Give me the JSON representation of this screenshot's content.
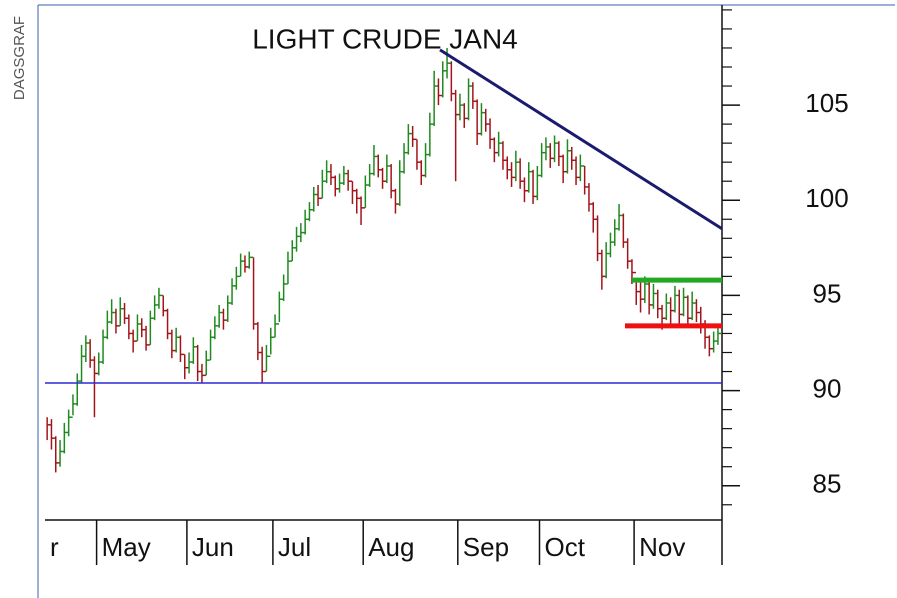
{
  "chart_data": {
    "type": "ohlc",
    "title": "LIGHT CRUDE JAN4",
    "source": "DAGSGRAF",
    "categories": [
      "r",
      "May",
      "Jun",
      "Jul",
      "Aug",
      "Sep",
      "Oct",
      "Nov"
    ],
    "up_color": "#1f8a1f",
    "down_color": "#a3141a",
    "ylim": [
      83.2,
      110.1
    ],
    "yticks": [
      85,
      90,
      95,
      100,
      105
    ],
    "minor_yticks": [
      84,
      86,
      87,
      88,
      89,
      91,
      92,
      93,
      94,
      96,
      97,
      98,
      99,
      101,
      102,
      103,
      104,
      106,
      107,
      108,
      109,
      110
    ],
    "lines": [
      {
        "color": "#1a1a6e",
        "from": 107.9,
        "to": 98.5
      },
      {
        "color": "#2a2ad6",
        "from": 90.4,
        "to": 90.4
      },
      {
        "color": "#22a822",
        "from": 95.8,
        "to": 95.8
      },
      {
        "color": "#ee1111",
        "from": 93.4,
        "to": 93.4
      }
    ],
    "bars": [
      [
        [
          88.6,
          87.4,
          88.2
        ],
        [
          88.5,
          86.9,
          87.5
        ],
        [
          87.6,
          85.7,
          86.2
        ],
        [
          87.4,
          86.0,
          86.8
        ],
        [
          88.3,
          86.7,
          87.8
        ],
        [
          89.0,
          87.6,
          88.6
        ],
        [
          89.8,
          88.7,
          89.3
        ],
        [
          90.9,
          89.2,
          90.5
        ],
        [
          92.4,
          90.4,
          91.8
        ],
        [
          92.9,
          91.5,
          92.5
        ],
        [
          92.7,
          91.2,
          91.6
        ],
        [
          91.8,
          88.6,
          90.9
        ]
      ],
      [
        [
          92.0,
          90.8,
          91.5
        ],
        [
          93.2,
          91.4,
          92.8
        ],
        [
          94.2,
          92.7,
          93.6
        ],
        [
          94.8,
          93.5,
          94.1
        ],
        [
          94.3,
          93.0,
          93.4
        ],
        [
          94.9,
          93.4,
          94.3
        ],
        [
          94.6,
          93.5,
          93.8
        ],
        [
          94.0,
          92.7,
          93.0
        ],
        [
          93.2,
          92.0,
          92.6
        ],
        [
          94.0,
          92.6,
          93.5
        ],
        [
          93.8,
          92.8,
          93.2
        ],
        [
          93.4,
          92.1,
          92.4
        ],
        [
          94.2,
          92.4,
          93.8
        ],
        [
          95.0,
          93.7,
          94.5
        ],
        [
          95.4,
          94.3,
          95.0
        ],
        [
          95.0,
          93.9,
          94.2
        ],
        [
          94.3,
          92.7,
          93.0
        ],
        [
          93.2,
          91.7,
          92.1
        ],
        [
          93.3,
          92.0,
          92.8
        ],
        [
          92.9,
          91.5,
          91.9
        ],
        [
          91.9,
          90.6,
          91.2
        ]
      ],
      [
        [
          92.0,
          90.9,
          91.5
        ],
        [
          92.8,
          91.4,
          92.3
        ],
        [
          92.4,
          90.5,
          91.0
        ],
        [
          91.4,
          90.4,
          90.8
        ],
        [
          92.1,
          90.8,
          91.6
        ],
        [
          93.2,
          91.6,
          92.8
        ],
        [
          93.9,
          92.7,
          93.4
        ],
        [
          94.5,
          93.3,
          94.1
        ],
        [
          94.3,
          93.2,
          93.7
        ],
        [
          95.0,
          93.6,
          94.6
        ],
        [
          95.9,
          94.5,
          95.5
        ],
        [
          96.5,
          95.3,
          96.0
        ],
        [
          97.2,
          96.0,
          96.8
        ],
        [
          97.1,
          96.2,
          96.5
        ],
        [
          97.3,
          96.4,
          97.0
        ],
        [
          97.0,
          93.2,
          93.5
        ],
        [
          93.6,
          91.6,
          92.0
        ],
        [
          92.3,
          90.4,
          91.0
        ],
        [
          92.4,
          91.0,
          91.8
        ],
        [
          93.3,
          91.9,
          92.8
        ]
      ],
      [
        [
          94.0,
          92.8,
          93.5
        ],
        [
          95.2,
          93.6,
          94.8
        ],
        [
          96.1,
          94.7,
          95.6
        ],
        [
          97.3,
          95.6,
          96.8
        ],
        [
          97.9,
          96.8,
          97.5
        ],
        [
          98.6,
          97.3,
          98.1
        ],
        [
          98.8,
          97.8,
          98.3
        ],
        [
          99.5,
          98.2,
          99.0
        ],
        [
          99.9,
          98.9,
          99.5
        ],
        [
          100.7,
          99.4,
          100.3
        ],
        [
          100.8,
          99.7,
          100.1
        ],
        [
          101.6,
          100.1,
          101.0
        ],
        [
          102.1,
          100.9,
          101.5
        ],
        [
          101.9,
          100.8,
          101.2
        ],
        [
          101.3,
          100.2,
          100.6
        ],
        [
          101.4,
          100.4,
          100.9
        ],
        [
          101.8,
          100.8,
          101.4
        ],
        [
          101.6,
          100.5,
          101.0
        ],
        [
          101.0,
          99.8,
          100.5
        ],
        [
          100.6,
          99.3,
          100.1
        ],
        [
          100.2,
          98.7,
          99.6
        ]
      ],
      [
        [
          101.3,
          99.6,
          100.8
        ],
        [
          101.9,
          100.7,
          101.4
        ],
        [
          102.9,
          101.3,
          102.3
        ],
        [
          102.4,
          101.2,
          101.6
        ],
        [
          101.7,
          100.6,
          101.0
        ],
        [
          102.4,
          100.9,
          101.8
        ],
        [
          101.9,
          100.1,
          100.5
        ],
        [
          100.6,
          99.3,
          99.8
        ],
        [
          102.1,
          99.7,
          101.5
        ],
        [
          103.0,
          101.4,
          102.5
        ],
        [
          104.0,
          102.4,
          103.5
        ],
        [
          103.9,
          102.8,
          103.2
        ],
        [
          103.2,
          101.6,
          102.0
        ],
        [
          102.1,
          100.8,
          101.3
        ],
        [
          103.0,
          101.2,
          102.4
        ],
        [
          104.6,
          102.3,
          104.0
        ],
        [
          106.8,
          103.9,
          106.0
        ],
        [
          106.4,
          105.0,
          105.5
        ],
        [
          107.3,
          105.4,
          106.8
        ],
        [
          108.0,
          106.4,
          107.2
        ],
        [
          107.3,
          105.2,
          105.6
        ],
        [
          105.8,
          101.0,
          104.5
        ]
      ],
      [
        [
          105.6,
          104.2,
          105.0
        ],
        [
          105.1,
          103.8,
          104.3
        ],
        [
          106.4,
          104.2,
          106.0
        ],
        [
          106.2,
          104.8,
          105.2
        ],
        [
          105.3,
          102.9,
          103.5
        ],
        [
          105.1,
          103.4,
          104.6
        ],
        [
          104.8,
          103.6,
          104.0
        ],
        [
          104.3,
          102.7,
          103.2
        ],
        [
          103.3,
          102.0,
          102.5
        ],
        [
          103.6,
          102.3,
          103.0
        ],
        [
          103.1,
          101.6,
          102.1
        ],
        [
          102.3,
          101.1,
          101.6
        ],
        [
          102.0,
          100.7,
          101.2
        ],
        [
          102.6,
          101.0,
          102.0
        ],
        [
          102.2,
          100.6,
          101.0
        ],
        [
          101.2,
          99.9,
          100.5
        ],
        [
          102.0,
          100.4,
          101.5
        ],
        [
          101.6,
          99.8,
          100.2
        ],
        [
          101.8,
          100.0,
          101.3
        ]
      ],
      [
        [
          103.0,
          101.2,
          102.5
        ],
        [
          103.3,
          102.1,
          102.8
        ],
        [
          103.0,
          101.7,
          102.2
        ],
        [
          103.4,
          102.0,
          103.0
        ],
        [
          103.1,
          101.8,
          102.3
        ],
        [
          102.4,
          100.9,
          101.5
        ],
        [
          103.2,
          101.4,
          102.6
        ],
        [
          102.8,
          101.6,
          102.1
        ],
        [
          102.3,
          100.8,
          101.2
        ],
        [
          102.4,
          101.0,
          101.8
        ],
        [
          101.8,
          100.3,
          100.7
        ],
        [
          100.9,
          99.4,
          99.8
        ],
        [
          99.9,
          98.3,
          99.0
        ],
        [
          99.2,
          96.8,
          97.2
        ],
        [
          97.4,
          95.3,
          96.0
        ],
        [
          97.8,
          95.9,
          97.2
        ],
        [
          98.3,
          97.0,
          97.8
        ],
        [
          99.0,
          97.6,
          98.5
        ],
        [
          99.8,
          98.4,
          99.2
        ],
        [
          99.3,
          97.5,
          97.8
        ],
        [
          98.0,
          96.4,
          96.8
        ],
        [
          96.9,
          95.6,
          96.2
        ]
      ],
      [
        [
          95.9,
          94.5,
          95.2
        ],
        [
          95.7,
          94.1,
          94.8
        ],
        [
          96.0,
          94.6,
          95.6
        ],
        [
          95.7,
          94.0,
          94.5
        ],
        [
          95.6,
          94.3,
          95.1
        ],
        [
          95.3,
          93.8,
          94.3
        ],
        [
          94.5,
          93.2,
          93.8
        ],
        [
          95.1,
          93.7,
          94.6
        ],
        [
          94.9,
          93.5,
          94.2
        ],
        [
          95.5,
          94.1,
          95.0
        ],
        [
          95.3,
          93.5,
          94.0
        ],
        [
          95.4,
          93.9,
          94.9
        ],
        [
          95.0,
          93.3,
          93.8
        ],
        [
          95.2,
          93.7,
          94.6
        ],
        [
          94.8,
          93.6,
          94.1
        ],
        [
          94.4,
          93.0,
          93.5
        ],
        [
          93.7,
          92.2,
          92.8
        ],
        [
          92.9,
          91.8,
          92.2
        ],
        [
          93.1,
          92.0,
          92.6
        ],
        [
          93.5,
          92.4,
          93.0
        ]
      ]
    ]
  }
}
